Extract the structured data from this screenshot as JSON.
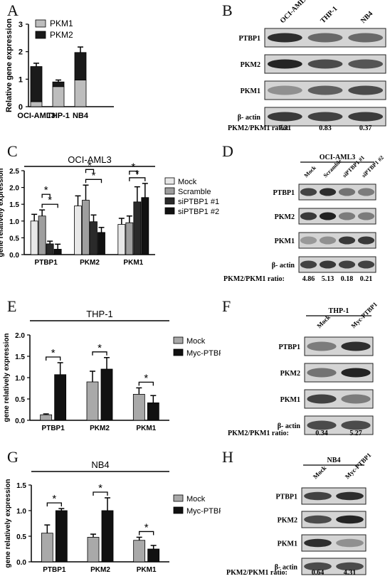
{
  "panels": {
    "A": "A",
    "B": "B",
    "C": "C",
    "D": "D",
    "E": "E",
    "F": "F",
    "G": "G",
    "H": "H"
  },
  "chart_data": [
    {
      "panel": "A",
      "type": "bar",
      "stacked": true,
      "categories": [
        "OCI-AML3",
        "THP-1",
        "NB4"
      ],
      "series": [
        {
          "name": "PKM1",
          "color": "#bdbdbd",
          "values": [
            0.18,
            0.73,
            0.97
          ],
          "errors": [
            0,
            0,
            0
          ]
        },
        {
          "name": "PKM2",
          "color": "#1a1a1a",
          "values": [
            1.28,
            0.17,
            1.0
          ],
          "errors": [
            0.12,
            0.07,
            0.2
          ]
        }
      ],
      "title": "",
      "ylabel": "Relative gene expression",
      "ylim": [
        0,
        3
      ],
      "yticks": [
        "0",
        "1",
        "2",
        "3"
      ],
      "legend": "top-left"
    },
    {
      "panel": "C",
      "type": "bar",
      "title": "OCI-AML3",
      "categories": [
        "PTBP1",
        "PKM2",
        "PKM1"
      ],
      "series": [
        {
          "name": "Mock",
          "color": "#e8e8e8",
          "values": [
            1.0,
            1.45,
            0.9
          ],
          "errors": [
            0.2,
            0.3,
            0.18
          ]
        },
        {
          "name": "Scramble",
          "color": "#9e9e9e",
          "values": [
            1.15,
            1.62,
            0.95
          ],
          "errors": [
            0.18,
            0.45,
            0.2
          ]
        },
        {
          "name": "siPTBP1 #1",
          "color": "#2a2a2a",
          "values": [
            0.32,
            0.98,
            1.57
          ],
          "errors": [
            0.08,
            0.2,
            0.45
          ]
        },
        {
          "name": "siPTBP1 #2",
          "color": "#111111",
          "values": [
            0.16,
            0.66,
            1.7
          ],
          "errors": [
            0.15,
            0.15,
            0.42
          ]
        }
      ],
      "ylabel": "gene relatively expression",
      "ylim": [
        0,
        2.5
      ],
      "yticks": [
        "0.0",
        "0.5",
        "1.0",
        "1.5",
        "2.0",
        "2.5"
      ],
      "significance": "*",
      "legend": "right"
    },
    {
      "panel": "E",
      "type": "bar",
      "title": "THP-1",
      "categories": [
        "PTBP1",
        "PKM2",
        "PKM1"
      ],
      "series": [
        {
          "name": "Mock",
          "color": "#a9a9a9",
          "values": [
            0.13,
            0.9,
            0.61
          ],
          "errors": [
            0.02,
            0.25,
            0.15
          ]
        },
        {
          "name": "Myc-PTBP1",
          "color": "#111111",
          "values": [
            1.07,
            1.2,
            0.41
          ],
          "errors": [
            0.28,
            0.27,
            0.17
          ]
        }
      ],
      "ylabel": "gene relatively expression",
      "ylim": [
        0,
        2.0
      ],
      "yticks": [
        "0.0",
        "0.5",
        "1.0",
        "1.5",
        "2.0"
      ],
      "significance": "*",
      "legend": "right"
    },
    {
      "panel": "G",
      "type": "bar",
      "title": "NB4",
      "categories": [
        "PTBP1",
        "PKM2",
        "PKM1"
      ],
      "series": [
        {
          "name": "Mock",
          "color": "#a9a9a9",
          "values": [
            0.56,
            0.48,
            0.42
          ],
          "errors": [
            0.16,
            0.06,
            0.06
          ]
        },
        {
          "name": "Myc-PTBP1",
          "color": "#111111",
          "values": [
            1.0,
            1.0,
            0.25
          ],
          "errors": [
            0.04,
            0.25,
            0.07
          ]
        }
      ],
      "ylabel": "gene relatively expression",
      "ylim": [
        0,
        1.5
      ],
      "yticks": [
        "0.0",
        "0.5",
        "1.0",
        "1.5"
      ],
      "significance": "*",
      "legend": "right"
    }
  ],
  "blots": [
    {
      "panel": "B",
      "header": "",
      "lanes": [
        "OCI-AML3",
        "THP-1",
        "NB4"
      ],
      "rows": [
        "PTBP1",
        "PKM2",
        "PKM1",
        "β- actin"
      ],
      "ratio_label": "PKM2/PKM1 ratio:",
      "ratios": [
        "7.31",
        "0.83",
        "0.37"
      ]
    },
    {
      "panel": "D",
      "header": "OCI-AML3",
      "lanes": [
        "Mock",
        "Scramble",
        "siPTBP1 #1",
        "siPTBP1 #2"
      ],
      "rows": [
        "PTBP1",
        "PKM2",
        "PKM1",
        "β- actin"
      ],
      "ratio_label": "PKM2/PKM1 ratio:",
      "ratios": [
        "4.86",
        "5.13",
        "0.18",
        "0.21"
      ]
    },
    {
      "panel": "F",
      "header": "THP-1",
      "lanes": [
        "Mock",
        "Myc-PTBP1"
      ],
      "rows": [
        "PTBP1",
        "PKM2",
        "PKM1",
        "β- actin"
      ],
      "ratio_label": "PKM2/PKM1 ratio:",
      "ratios": [
        "0.34",
        "5.27"
      ]
    },
    {
      "panel": "H",
      "header": "NB4",
      "lanes": [
        "Mock",
        "Myc-PTBP1"
      ],
      "rows": [
        "PTBP1",
        "PKM2",
        "PKM1",
        "β- actin"
      ],
      "ratio_label": "PKM2/PKM1 ratio:",
      "ratios": [
        "0.64",
        "4.31"
      ]
    }
  ]
}
